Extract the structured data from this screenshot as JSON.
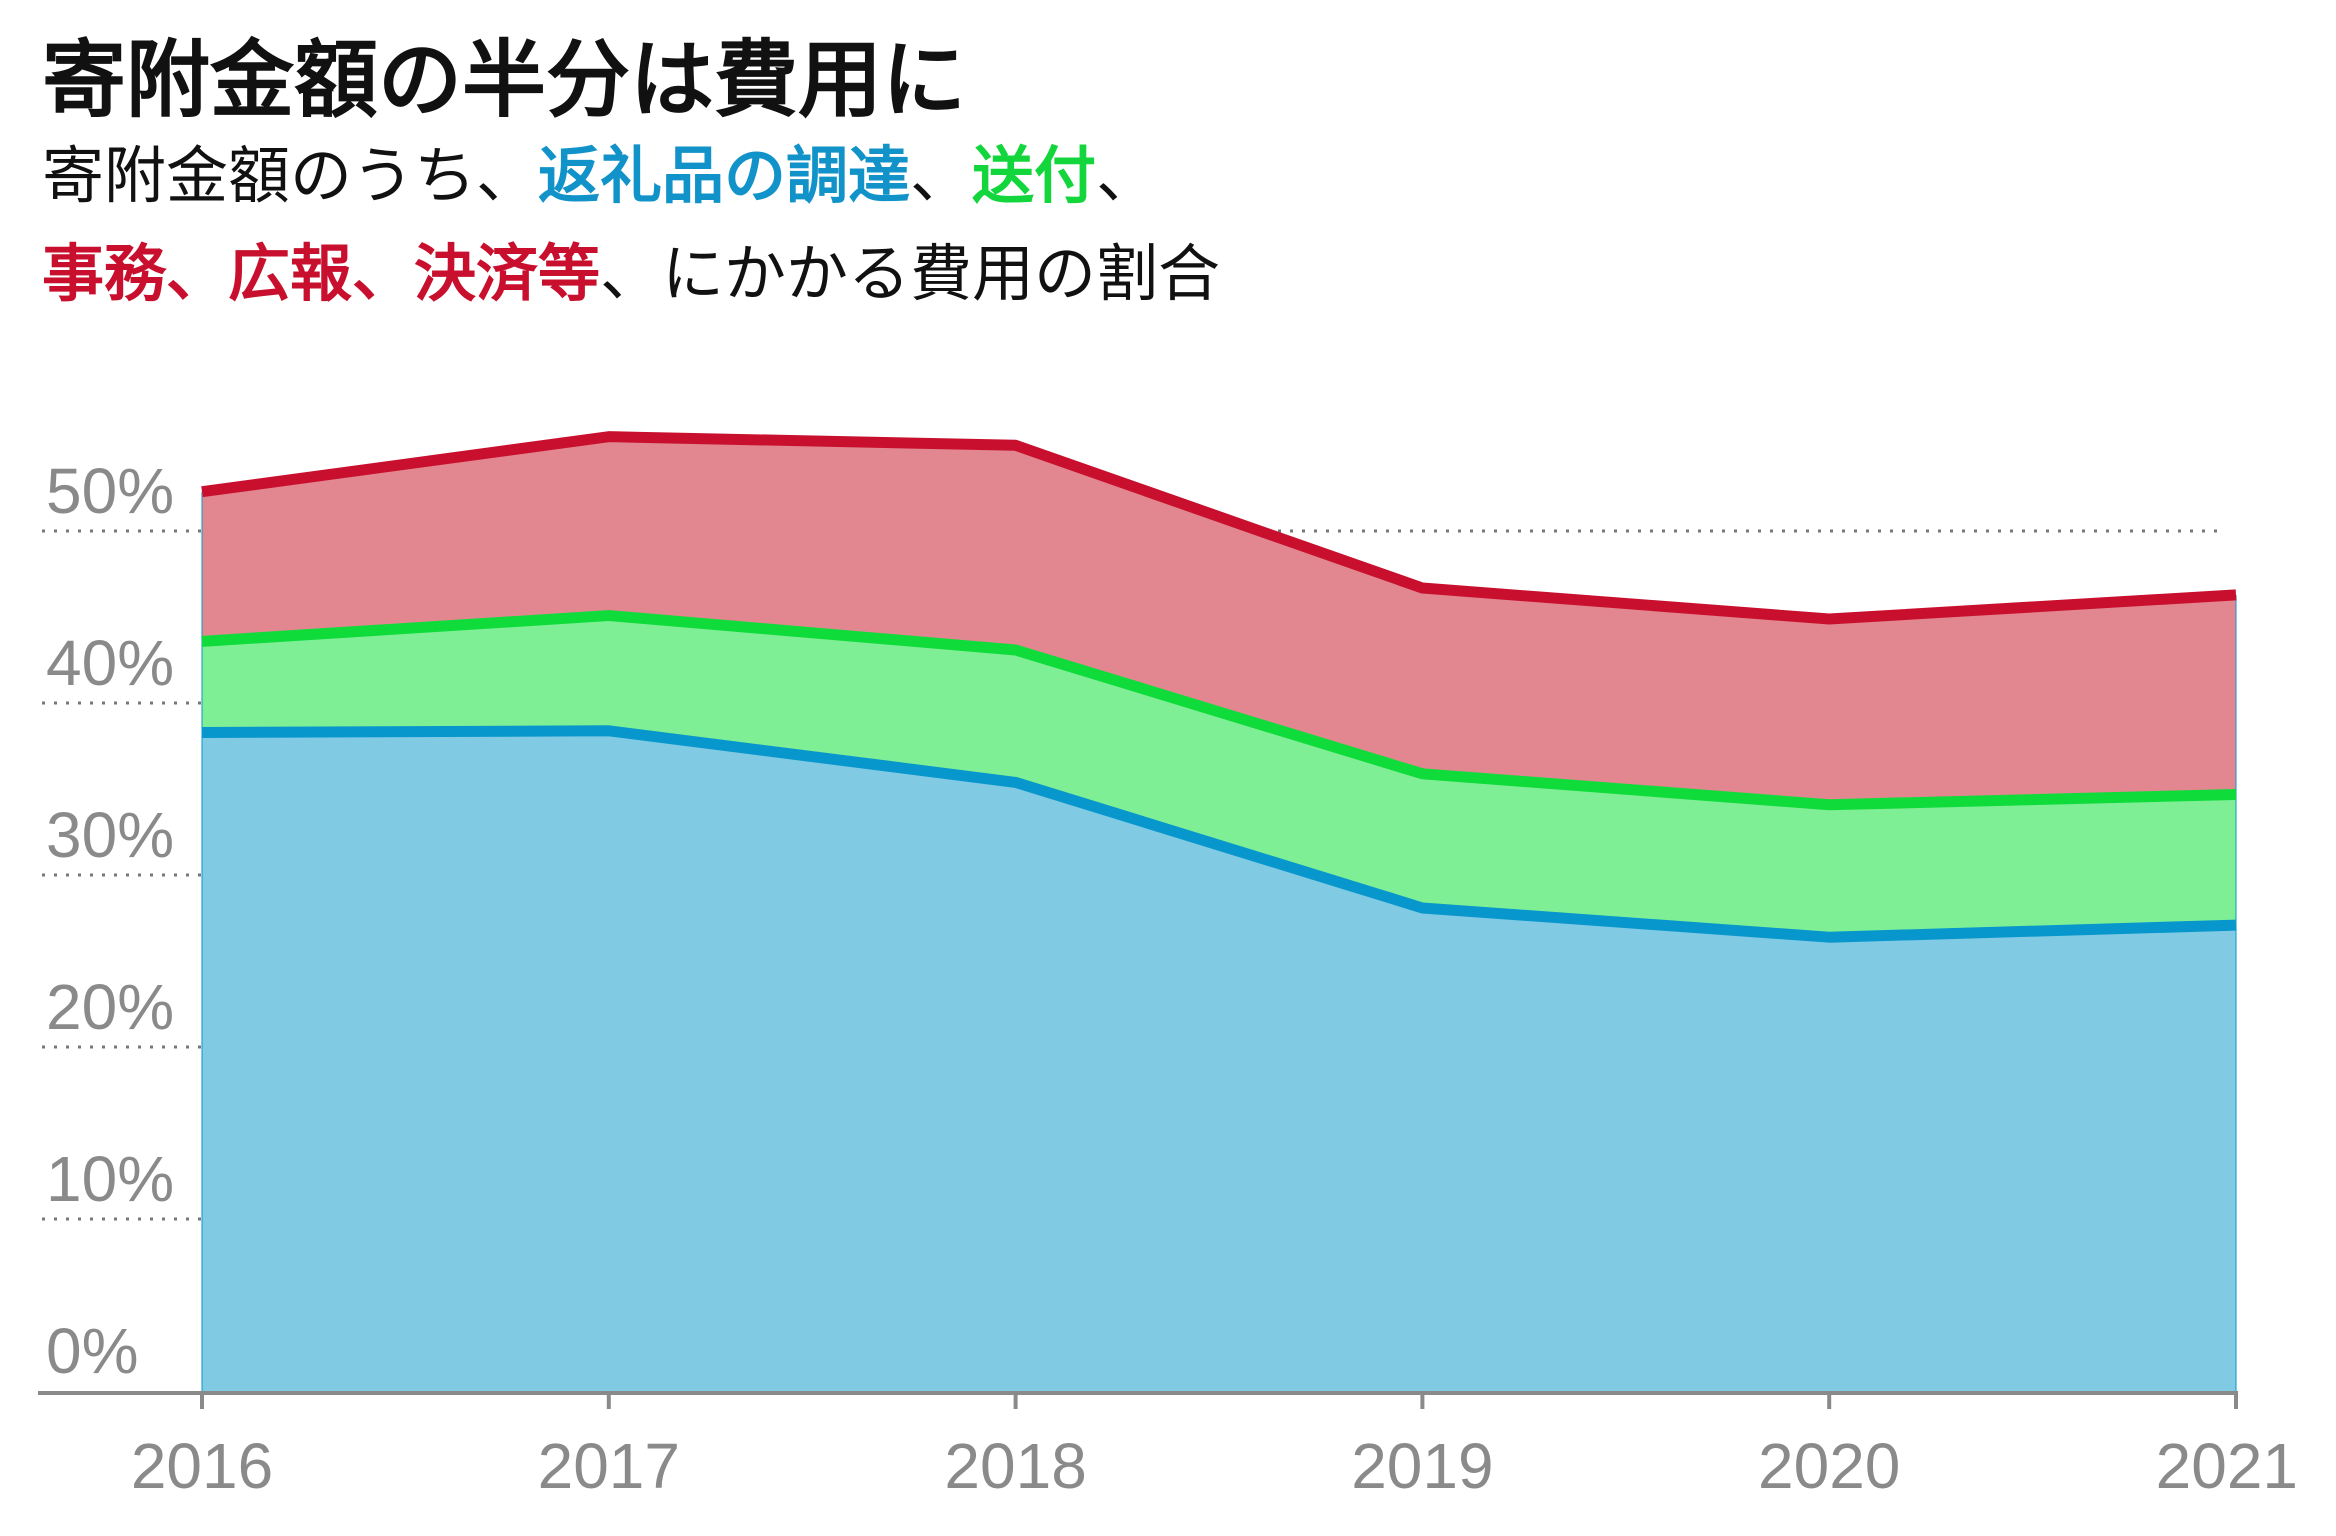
{
  "title": "寄附金額の半分は費用に",
  "subtitle": {
    "line1_prefix": "寄附金額のうち、",
    "procurement": "返礼品の調達",
    "sep1": "、",
    "shipping": "送付",
    "sep2": "、",
    "admin": "事務、広報、決済等",
    "line2_suffix": "、にかかる費用の割合"
  },
  "colors": {
    "procurement_line": "#0797cc",
    "procurement_fill": "#80cae4",
    "shipping_line": "#0fdc3a",
    "shipping_fill": "#7fef96",
    "admin_line": "#c8102e",
    "admin_fill": "#e28790",
    "grid": "#777777",
    "axis": "#8a8a8a"
  },
  "chart_data": {
    "type": "area",
    "stacked": true,
    "x": [
      "2016",
      "2017",
      "2018",
      "2019",
      "2020",
      "2021"
    ],
    "series": [
      {
        "name": "返礼品の調達",
        "values": [
          38.4,
          38.5,
          35.5,
          28.2,
          26.5,
          27.2
        ]
      },
      {
        "name": "送付",
        "values": [
          5.3,
          6.7,
          7.7,
          7.8,
          7.7,
          7.6
        ]
      },
      {
        "name": "事務、広報、決済等",
        "values": [
          8.7,
          10.4,
          11.9,
          10.8,
          10.8,
          11.6
        ]
      }
    ],
    "ylim": [
      0,
      55
    ],
    "yticks": [
      "0%",
      "10%",
      "20%",
      "30%",
      "40%",
      "50%"
    ],
    "grid": "dotted horizontal",
    "legend": "in subtitle"
  }
}
